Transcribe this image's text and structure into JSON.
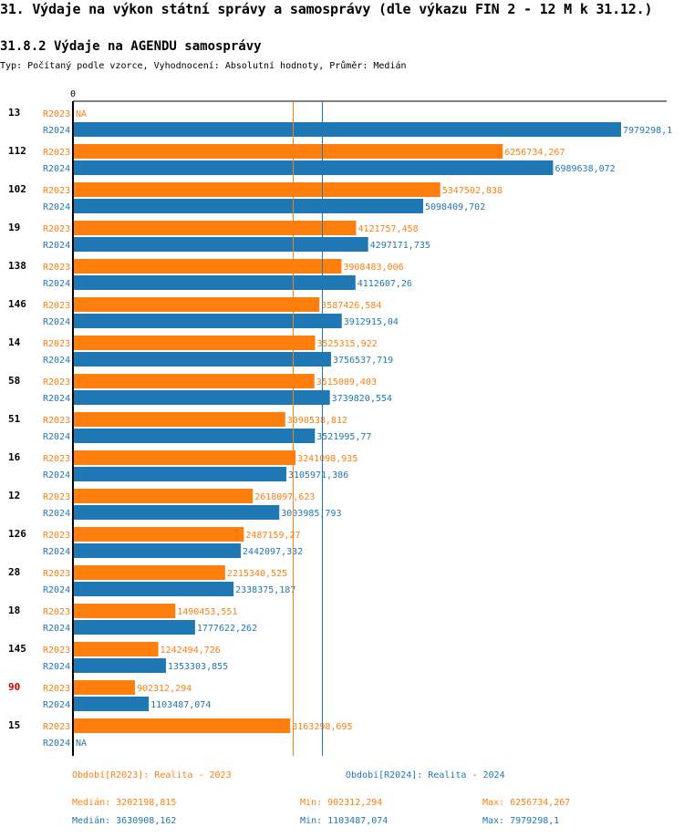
{
  "page": {
    "title": "31. Výdaje na výkon státní správy a samosprávy (dle výkazu FIN 2 - 12 M k 31.12.)",
    "subtitle": "31.8.2 Výdaje na AGENDU samosprávy",
    "type_line": "Typ: Počítaný podle vzorce, Vyhodnocení: Absolutní hodnoty, Průměr: Medián"
  },
  "colors": {
    "r2023": "#ff7f0e",
    "r2024": "#1f77b4",
    "highlight": "#d00000"
  },
  "chart_data": {
    "type": "bar",
    "orientation": "horizontal",
    "axis_zero_label": "0",
    "xlim": [
      0,
      7979298.1
    ],
    "series": [
      {
        "key": "r2023",
        "name": "R2023"
      },
      {
        "key": "r2024",
        "name": "R2024"
      }
    ],
    "categories": [
      {
        "label": "13",
        "r2023": null,
        "r2023_text": "NA",
        "r2024": 7979298.1,
        "r2024_text": "7979298,1"
      },
      {
        "label": "112",
        "r2023": 6256734.267,
        "r2023_text": "6256734,267",
        "r2024": 6989638.072,
        "r2024_text": "6989638,072"
      },
      {
        "label": "102",
        "r2023": 5347502.838,
        "r2023_text": "5347502,838",
        "r2024": 5098409.702,
        "r2024_text": "5098409,702"
      },
      {
        "label": "19",
        "r2023": 4121757.458,
        "r2023_text": "4121757,458",
        "r2024": 4297171.735,
        "r2024_text": "4297171,735"
      },
      {
        "label": "138",
        "r2023": 3908483.006,
        "r2023_text": "3908483,006",
        "r2024": 4112607.26,
        "r2024_text": "4112607,26"
      },
      {
        "label": "146",
        "r2023": 3587426.584,
        "r2023_text": "3587426,584",
        "r2024": 3912915.04,
        "r2024_text": "3912915,04"
      },
      {
        "label": "14",
        "r2023": 3525315.922,
        "r2023_text": "3525315,922",
        "r2024": 3756537.719,
        "r2024_text": "3756537,719"
      },
      {
        "label": "58",
        "r2023": 3515089.403,
        "r2023_text": "3515089,403",
        "r2024": 3739820.554,
        "r2024_text": "3739820,554"
      },
      {
        "label": "51",
        "r2023": 3090538.812,
        "r2023_text": "3090538,812",
        "r2024": 3521995.77,
        "r2024_text": "3521995,77"
      },
      {
        "label": "16",
        "r2023": 3241098.935,
        "r2023_text": "3241098,935",
        "r2024": 3105971.386,
        "r2024_text": "3105971,386"
      },
      {
        "label": "12",
        "r2023": 2618097.623,
        "r2023_text": "2618097,623",
        "r2024": 3003985.793,
        "r2024_text": "3003985,793"
      },
      {
        "label": "126",
        "r2023": 2487159.27,
        "r2023_text": "2487159,27",
        "r2024": 2442097.332,
        "r2024_text": "2442097,332"
      },
      {
        "label": "28",
        "r2023": 2215340.525,
        "r2023_text": "2215340,525",
        "r2024": 2338375.187,
        "r2024_text": "2338375,187"
      },
      {
        "label": "18",
        "r2023": 1490453.551,
        "r2023_text": "1490453,551",
        "r2024": 1777622.262,
        "r2024_text": "1777622,262"
      },
      {
        "label": "145",
        "r2023": 1242494.726,
        "r2023_text": "1242494,726",
        "r2024": 1353303.855,
        "r2024_text": "1353303,855"
      },
      {
        "label": "90",
        "highlight": true,
        "r2023": 902312.294,
        "r2023_text": "902312,294",
        "r2024": 1103487.074,
        "r2024_text": "1103487,074"
      },
      {
        "label": "15",
        "r2023": 3163298.695,
        "r2023_text": "3163298,695",
        "r2024": null,
        "r2024_text": "NA"
      }
    ],
    "median_lines": {
      "r2023": 3202198.815,
      "r2024": 3630908.162
    }
  },
  "footer": {
    "period_2023": "Období[R2023]: Realita - 2023",
    "period_2024": "Období[R2024]: Realita - 2024",
    "median_2023": "Medián: 3202198,815",
    "min_2023": "Min: 902312,294",
    "max_2023": "Max: 6256734,267",
    "median_2024": "Medián: 3630908,162",
    "min_2024": "Min: 1103487,074",
    "max_2024": "Max: 7979298,1"
  }
}
